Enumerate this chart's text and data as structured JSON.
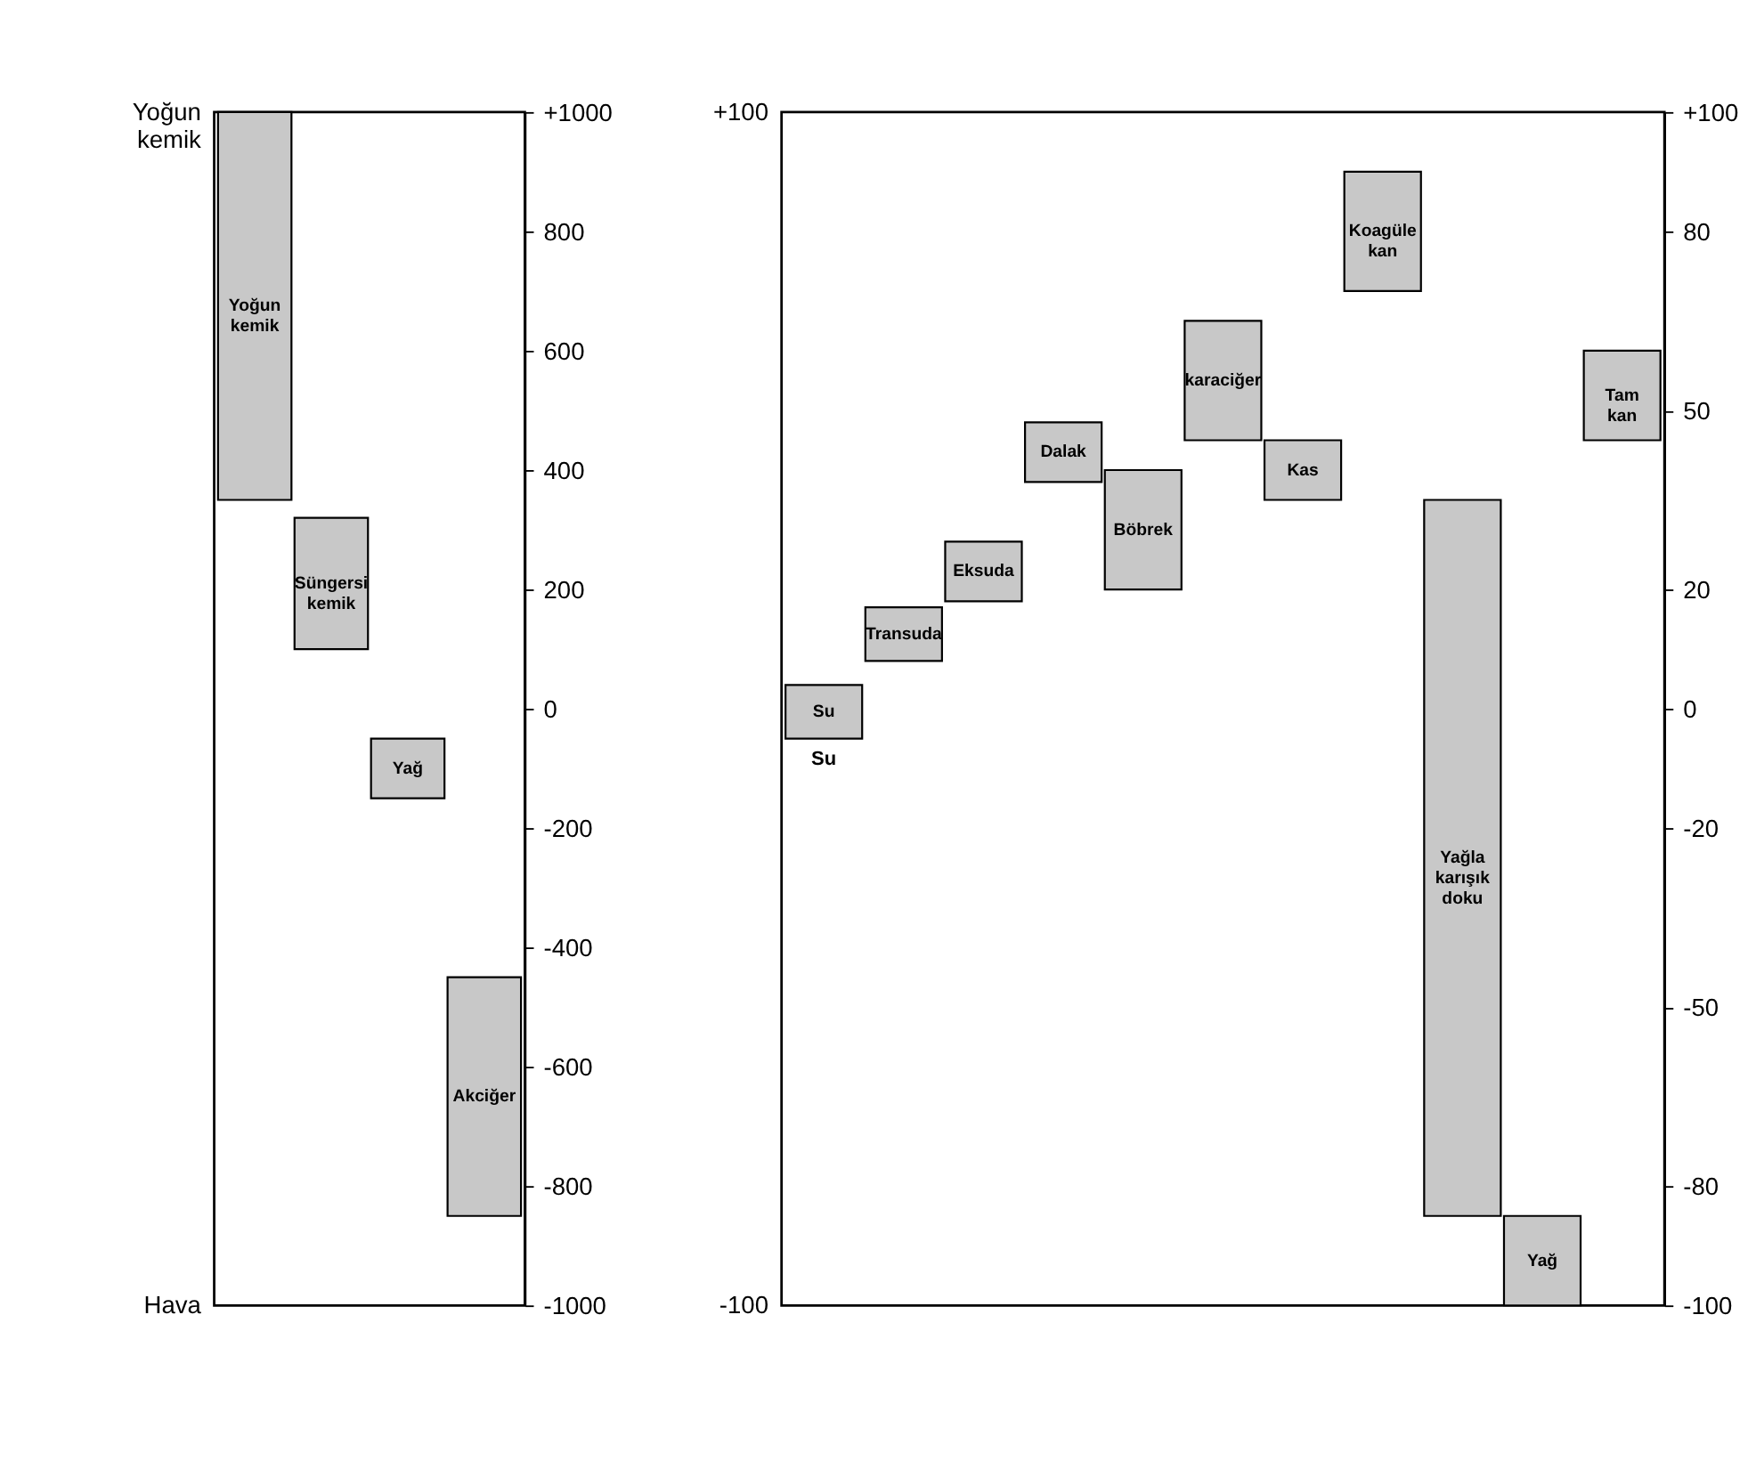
{
  "chart_data": [
    {
      "type": "bar",
      "categories": [
        "Yoğun kemik",
        "Süngersi kemik",
        "Yağ",
        "Akciğer"
      ],
      "values": [
        650,
        220,
        100,
        400
      ],
      "base": [
        350,
        100,
        -150,
        -850
      ],
      "color": "#c8c8c8",
      "ylim": [
        -1000,
        1000
      ],
      "yticks": [
        {
          "value": 1000,
          "label": "+1000"
        },
        800,
        600,
        400,
        200,
        0,
        {
          "value": -200,
          "label": "-200"
        },
        {
          "value": -400,
          "label": "-400"
        },
        {
          "value": -600,
          "label": "-600"
        },
        {
          "value": -800,
          "label": "-800"
        },
        {
          "value": -1000,
          "label": "-1000"
        }
      ],
      "annotations": [
        "Yoğun kemik",
        "Hava"
      ]
    },
    {
      "type": "bar",
      "categories": [
        "Su",
        "Transuda",
        "Eksuda",
        "Dalak",
        "Böbrek",
        "karaciğer",
        "Kas",
        "Koagüle kan",
        "Yağla karışık doku",
        "Yağ",
        "Tam kan"
      ],
      "values": [
        9,
        9,
        10,
        10,
        20,
        20,
        10,
        20,
        120,
        15,
        15
      ],
      "base": [
        -5,
        8,
        18,
        38,
        20,
        45,
        35,
        70,
        -85,
        -100,
        45
      ],
      "color": "#c8c8c8",
      "ylim": [
        -100,
        100
      ],
      "yticks": [
        {
          "value": 100,
          "label": "+100"
        },
        80,
        50,
        20,
        0,
        {
          "value": -20,
          "label": "-20"
        },
        {
          "value": -50,
          "label": "-50"
        },
        {
          "value": -80,
          "label": "-80"
        },
        {
          "value": -100,
          "label": "-100"
        }
      ],
      "annotations": [
        "+100",
        "-100",
        {
          "text": "Su",
          "x": "Su",
          "y": -5
        }
      ]
    }
  ]
}
